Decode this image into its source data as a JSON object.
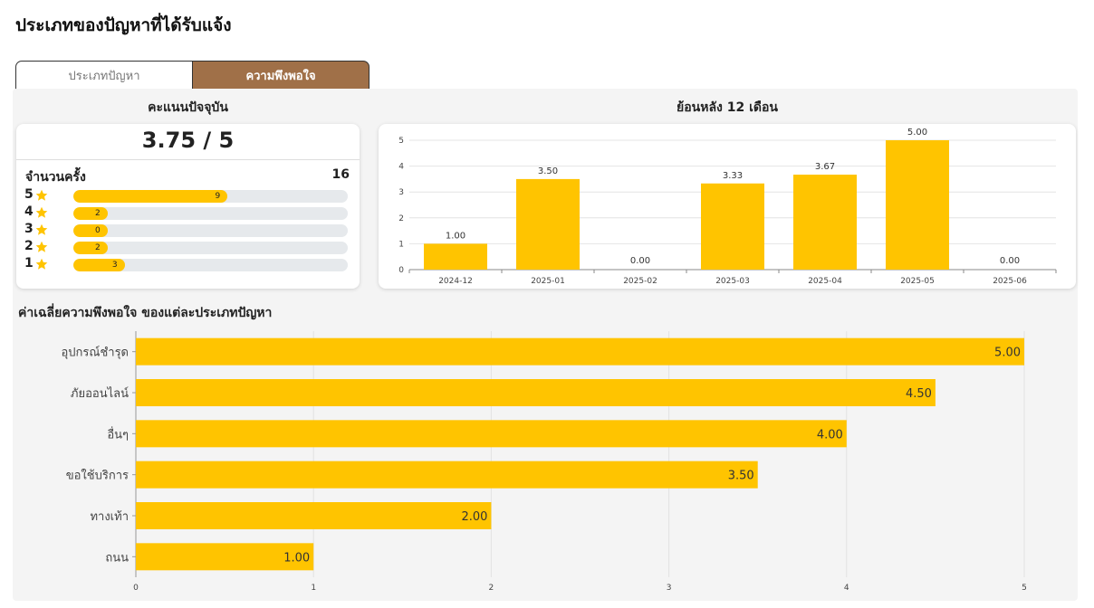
{
  "page": {
    "title": "ประเภทของปัญหาที่ได้รับแจ้ง"
  },
  "tabs": [
    {
      "label": "ประเภทปัญหา",
      "active": false
    },
    {
      "label": "ความพึงพอใจ",
      "active": true
    }
  ],
  "current_score": {
    "title": "คะแนนปัจจุบัน",
    "value": "3.75 / 5",
    "count_label": "จำนวนครั้ง",
    "count_value": "16",
    "ratings": [
      {
        "stars": "5",
        "count": 9
      },
      {
        "stars": "4",
        "count": 2
      },
      {
        "stars": "3",
        "count": 0
      },
      {
        "stars": "2",
        "count": 2
      },
      {
        "stars": "1",
        "count": 3
      }
    ]
  },
  "colors": {
    "bar": "#ffc400",
    "tab_active": "#a07048",
    "track": "#e6e9ec",
    "panel": "#f4f4f4"
  },
  "icons": {
    "star": "star-icon"
  },
  "chart_data": [
    {
      "type": "bar",
      "title": "ย้อนหลัง 12 เดือน",
      "categories": [
        "2024-12",
        "2025-01",
        "2025-02",
        "2025-03",
        "2025-04",
        "2025-05",
        "2025-06"
      ],
      "values": [
        1.0,
        3.5,
        0.0,
        3.33,
        3.67,
        5.0,
        0.0
      ],
      "data_labels": [
        "1.00",
        "3.50",
        "0.00",
        "3.33",
        "3.67",
        "5.00",
        "0.00"
      ],
      "ylim": [
        0,
        5
      ],
      "yticks": [
        "0",
        "1",
        "2",
        "3",
        "4",
        "5"
      ],
      "grid": true
    },
    {
      "type": "bar",
      "orientation": "horizontal",
      "title": "ค่าเฉลี่ยความพึงพอใจ ของแต่ละประเภทปัญหา",
      "categories": [
        "อุปกรณ์ชำรุด",
        "ภัยออนไลน์",
        "อื่นๆ",
        "ขอใช้บริการ",
        "ทางเท้า",
        "ถนน"
      ],
      "values": [
        5.0,
        4.5,
        4.0,
        3.5,
        2.0,
        1.0
      ],
      "data_labels": [
        "5.00",
        "4.50",
        "4.00",
        "3.50",
        "2.00",
        "1.00"
      ],
      "xlim": [
        0,
        5
      ],
      "xticks": [
        "0",
        "1",
        "2",
        "3",
        "4",
        "5"
      ],
      "grid": true
    }
  ]
}
